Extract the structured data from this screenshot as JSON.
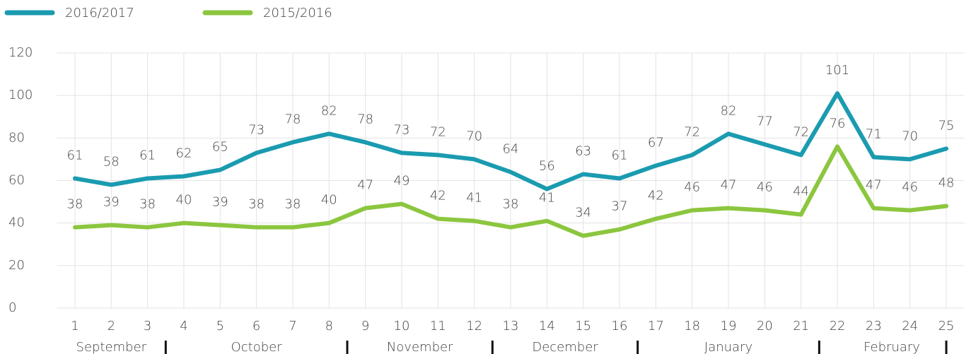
{
  "chart_data": {
    "type": "line",
    "categories": [
      "1",
      "2",
      "3",
      "4",
      "5",
      "6",
      "7",
      "8",
      "9",
      "10",
      "11",
      "12",
      "13",
      "14",
      "15",
      "16",
      "17",
      "18",
      "19",
      "20",
      "21",
      "22",
      "23",
      "24",
      "25"
    ],
    "series": [
      {
        "name": "2016/2017",
        "color": "#1a9bb0",
        "values": [
          61,
          58,
          61,
          62,
          65,
          73,
          78,
          82,
          78,
          73,
          72,
          70,
          64,
          56,
          63,
          61,
          67,
          72,
          82,
          77,
          72,
          101,
          71,
          70,
          75
        ]
      },
      {
        "name": "2015/2016",
        "color": "#8cc63f",
        "values": [
          38,
          39,
          38,
          40,
          39,
          38,
          38,
          40,
          47,
          49,
          42,
          41,
          38,
          41,
          34,
          37,
          42,
          46,
          47,
          46,
          44,
          76,
          47,
          46,
          48
        ]
      }
    ],
    "month_groups": [
      {
        "name": "September",
        "count": 3
      },
      {
        "name": "October",
        "count": 5
      },
      {
        "name": "November",
        "count": 4
      },
      {
        "name": "December",
        "count": 4
      },
      {
        "name": "January",
        "count": 5
      },
      {
        "name": "February",
        "count": 4
      }
    ],
    "ylim": [
      0,
      120
    ],
    "yticks": [
      0,
      20,
      40,
      60,
      80,
      100,
      120
    ],
    "grid": true,
    "legend": "top-left"
  }
}
